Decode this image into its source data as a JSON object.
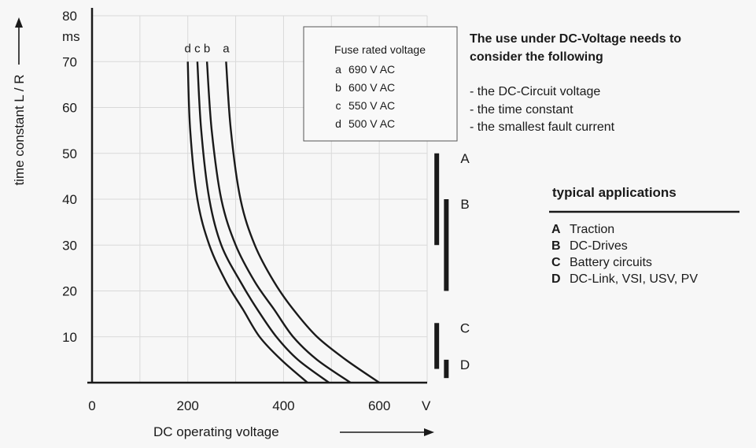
{
  "chart_data": {
    "type": "line",
    "xlabel": "DC operating voltage",
    "ylabel": "time constant   L / R",
    "x_unit": "V",
    "y_unit": "ms",
    "xlim": [
      0,
      700
    ],
    "ylim": [
      0,
      80
    ],
    "x_ticks": [
      0,
      200,
      400,
      600
    ],
    "y_ticks": [
      10,
      20,
      30,
      40,
      50,
      60,
      70,
      80
    ],
    "grid": true,
    "legend": {
      "title": "Fuse rated voltage",
      "placement": "top-center",
      "entries": [
        {
          "key": "a",
          "label": "690 V AC"
        },
        {
          "key": "b",
          "label": "600 V AC"
        },
        {
          "key": "c",
          "label": "550 V AC"
        },
        {
          "key": "d",
          "label": "500 V AC"
        }
      ]
    },
    "series": [
      {
        "name": "a",
        "points": [
          [
            280,
            70
          ],
          [
            290,
            55
          ],
          [
            310,
            40
          ],
          [
            340,
            30
          ],
          [
            380,
            22
          ],
          [
            420,
            16
          ],
          [
            470,
            10
          ],
          [
            530,
            5
          ],
          [
            600,
            0
          ]
        ]
      },
      {
        "name": "b",
        "points": [
          [
            240,
            70
          ],
          [
            250,
            55
          ],
          [
            270,
            40
          ],
          [
            300,
            30
          ],
          [
            340,
            22
          ],
          [
            380,
            16
          ],
          [
            420,
            10
          ],
          [
            470,
            5
          ],
          [
            540,
            0
          ]
        ]
      },
      {
        "name": "c",
        "points": [
          [
            220,
            70
          ],
          [
            228,
            55
          ],
          [
            245,
            40
          ],
          [
            270,
            30
          ],
          [
            310,
            22
          ],
          [
            345,
            16
          ],
          [
            385,
            10
          ],
          [
            430,
            5
          ],
          [
            495,
            0
          ]
        ]
      },
      {
        "name": "d",
        "points": [
          [
            200,
            70
          ],
          [
            205,
            55
          ],
          [
            220,
            40
          ],
          [
            245,
            30
          ],
          [
            280,
            22
          ],
          [
            315,
            16
          ],
          [
            350,
            10
          ],
          [
            395,
            5
          ],
          [
            450,
            0
          ]
        ]
      }
    ],
    "application_bands": [
      {
        "label": "A",
        "x": 720,
        "y_range": [
          30,
          50
        ]
      },
      {
        "label": "B",
        "x": 740,
        "y_range": [
          20,
          40
        ]
      },
      {
        "label": "C",
        "x": 720,
        "y_range": [
          3,
          13
        ]
      },
      {
        "label": "D",
        "x": 740,
        "y_range": [
          1,
          5
        ]
      }
    ]
  },
  "note": {
    "title_lines": [
      "The use under DC-Voltage needs to",
      "consider the following"
    ],
    "items": [
      "- the DC-Circuit voltage",
      "- the time constant",
      "- the smallest fault current"
    ]
  },
  "applications": {
    "title": "typical applications",
    "items": [
      {
        "key": "A",
        "label": "Traction"
      },
      {
        "key": "B",
        "label": "DC-Drives"
      },
      {
        "key": "C",
        "label": "Battery circuits"
      },
      {
        "key": "D",
        "label": "DC-Link, VSI, USV, PV"
      }
    ]
  }
}
